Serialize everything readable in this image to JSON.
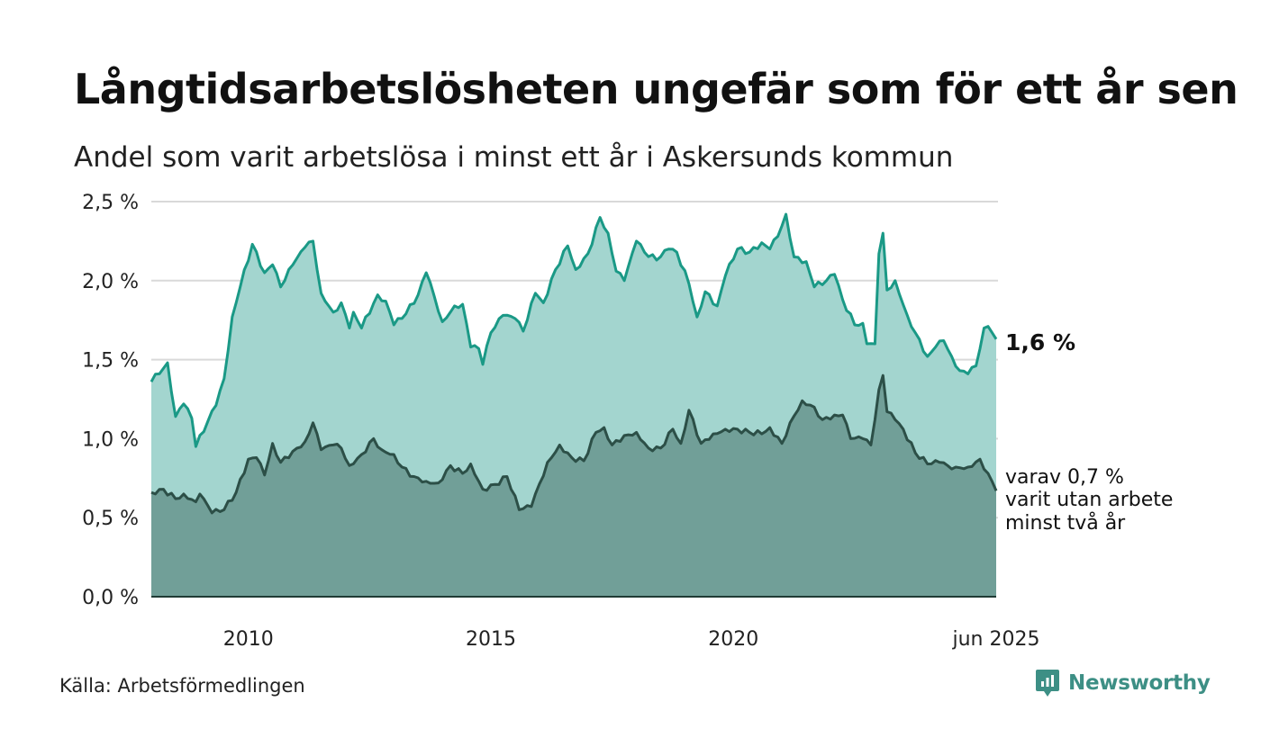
{
  "header": {
    "title": "Långtidsarbetslösheten ungefär som för ett år sen",
    "subtitle": "Andel som varit arbetslösa i minst ett år i Askersunds kommun"
  },
  "footer": {
    "source": "Källa: Arbetsförmedlingen",
    "brand": "Newsworthy"
  },
  "annotations": {
    "total_label": "1,6 %",
    "sub_label_lines": [
      "varav 0,7 %",
      "varit utan arbete",
      "minst två år"
    ]
  },
  "colors": {
    "total_line": "#1a9986",
    "total_fill": "#a3d5cf",
    "sub_line": "#2c4f47",
    "sub_fill": "#719f98",
    "grid": "#d9d9d9",
    "brand": "#3d8f85"
  },
  "icons": {
    "brand_logo": "newsworthy-logo-icon"
  },
  "chart_data": {
    "type": "area",
    "x_start": "2008-01",
    "x_end": "2025-06",
    "x_frequency": "monthly",
    "ylim": [
      0,
      2.5
    ],
    "yticks": [
      0,
      0.5,
      1.0,
      1.5,
      2.0,
      2.5
    ],
    "ytick_labels": [
      "0,0 %",
      "0,5 %",
      "1,0 %",
      "1,5 %",
      "2,0 %",
      "2,5 %"
    ],
    "xticks": [
      "2010-01",
      "2015-01",
      "2020-01",
      "2025-06"
    ],
    "xtick_labels": [
      "2010",
      "2015",
      "2020",
      "jun 2025"
    ],
    "grid": "horizontal",
    "series": [
      {
        "name": "",
        "unit": "%",
        "anchors": [
          [
            "2008-01",
            1.36
          ],
          [
            "2008-05",
            1.48
          ],
          [
            "2008-07",
            1.14
          ],
          [
            "2008-09",
            1.22
          ],
          [
            "2008-11",
            1.13
          ],
          [
            "2008-12",
            0.95
          ],
          [
            "2009-03",
            1.11
          ],
          [
            "2009-05",
            1.21
          ],
          [
            "2009-07",
            1.38
          ],
          [
            "2009-09",
            1.77
          ],
          [
            "2009-11",
            1.96
          ],
          [
            "2010-02",
            2.23
          ],
          [
            "2010-05",
            2.05
          ],
          [
            "2010-07",
            2.1
          ],
          [
            "2010-09",
            1.96
          ],
          [
            "2010-12",
            2.1
          ],
          [
            "2011-03",
            2.21
          ],
          [
            "2011-05",
            2.25
          ],
          [
            "2011-07",
            1.92
          ],
          [
            "2011-10",
            1.8
          ],
          [
            "2011-12",
            1.86
          ],
          [
            "2012-02",
            1.7
          ],
          [
            "2012-03",
            1.8
          ],
          [
            "2012-05",
            1.7
          ],
          [
            "2012-09",
            1.91
          ],
          [
            "2012-11",
            1.87
          ],
          [
            "2013-01",
            1.72
          ],
          [
            "2013-04",
            1.79
          ],
          [
            "2013-07",
            1.91
          ],
          [
            "2013-09",
            2.05
          ],
          [
            "2013-11",
            1.9
          ],
          [
            "2014-01",
            1.74
          ],
          [
            "2014-04",
            1.84
          ],
          [
            "2014-06",
            1.85
          ],
          [
            "2014-08",
            1.58
          ],
          [
            "2014-10",
            1.57
          ],
          [
            "2014-11",
            1.47
          ],
          [
            "2015-01",
            1.67
          ],
          [
            "2015-04",
            1.78
          ],
          [
            "2015-07",
            1.76
          ],
          [
            "2015-09",
            1.68
          ],
          [
            "2015-12",
            1.92
          ],
          [
            "2016-02",
            1.86
          ],
          [
            "2016-05",
            2.07
          ],
          [
            "2016-08",
            2.22
          ],
          [
            "2016-10",
            2.07
          ],
          [
            "2017-01",
            2.17
          ],
          [
            "2017-04",
            2.4
          ],
          [
            "2017-06",
            2.3
          ],
          [
            "2017-08",
            2.06
          ],
          [
            "2017-10",
            2.0
          ],
          [
            "2018-01",
            2.25
          ],
          [
            "2018-03",
            2.18
          ],
          [
            "2018-06",
            2.13
          ],
          [
            "2018-09",
            2.2
          ],
          [
            "2018-11",
            2.18
          ],
          [
            "2019-02",
            1.98
          ],
          [
            "2019-04",
            1.77
          ],
          [
            "2019-06",
            1.93
          ],
          [
            "2019-09",
            1.84
          ],
          [
            "2019-11",
            2.03
          ],
          [
            "2020-02",
            2.2
          ],
          [
            "2020-05",
            2.18
          ],
          [
            "2020-08",
            2.24
          ],
          [
            "2020-10",
            2.2
          ],
          [
            "2020-12",
            2.28
          ],
          [
            "2021-02",
            2.42
          ],
          [
            "2021-04",
            2.15
          ],
          [
            "2021-07",
            2.12
          ],
          [
            "2021-09",
            1.96
          ],
          [
            "2021-12",
            2.0
          ],
          [
            "2022-02",
            2.04
          ],
          [
            "2022-04",
            1.88
          ],
          [
            "2022-07",
            1.72
          ],
          [
            "2022-09",
            1.73
          ],
          [
            "2022-10",
            1.6
          ],
          [
            "2022-12",
            1.6
          ],
          [
            "2023-01",
            2.17
          ],
          [
            "2023-02",
            2.3
          ],
          [
            "2023-03",
            1.94
          ],
          [
            "2023-05",
            2.0
          ],
          [
            "2023-08",
            1.78
          ],
          [
            "2023-10",
            1.67
          ],
          [
            "2024-01",
            1.52
          ],
          [
            "2024-03",
            1.58
          ],
          [
            "2024-05",
            1.62
          ],
          [
            "2024-07",
            1.52
          ],
          [
            "2024-09",
            1.43
          ],
          [
            "2024-11",
            1.41
          ],
          [
            "2025-01",
            1.46
          ],
          [
            "2025-03",
            1.7
          ],
          [
            "2025-04",
            1.71
          ],
          [
            "2025-06",
            1.63
          ]
        ]
      },
      {
        "name": "",
        "unit": "%",
        "anchors": [
          [
            "2008-01",
            0.66
          ],
          [
            "2008-04",
            0.68
          ],
          [
            "2008-07",
            0.62
          ],
          [
            "2008-09",
            0.65
          ],
          [
            "2008-12",
            0.6
          ],
          [
            "2009-01",
            0.65
          ],
          [
            "2009-04",
            0.53
          ],
          [
            "2009-07",
            0.55
          ],
          [
            "2009-10",
            0.66
          ],
          [
            "2010-01",
            0.87
          ],
          [
            "2010-03",
            0.88
          ],
          [
            "2010-05",
            0.77
          ],
          [
            "2010-07",
            0.97
          ],
          [
            "2010-09",
            0.85
          ],
          [
            "2010-12",
            0.92
          ],
          [
            "2011-03",
            0.98
          ],
          [
            "2011-05",
            1.1
          ],
          [
            "2011-07",
            0.93
          ],
          [
            "2011-10",
            0.96
          ],
          [
            "2011-12",
            0.94
          ],
          [
            "2012-02",
            0.83
          ],
          [
            "2012-05",
            0.9
          ],
          [
            "2012-08",
            1.0
          ],
          [
            "2012-10",
            0.93
          ],
          [
            "2013-01",
            0.9
          ],
          [
            "2013-03",
            0.82
          ],
          [
            "2013-06",
            0.76
          ],
          [
            "2013-09",
            0.73
          ],
          [
            "2013-12",
            0.72
          ],
          [
            "2014-03",
            0.83
          ],
          [
            "2014-06",
            0.78
          ],
          [
            "2014-08",
            0.84
          ],
          [
            "2014-11",
            0.68
          ],
          [
            "2015-02",
            0.71
          ],
          [
            "2015-05",
            0.76
          ],
          [
            "2015-08",
            0.55
          ],
          [
            "2015-11",
            0.57
          ],
          [
            "2016-03",
            0.85
          ],
          [
            "2016-06",
            0.96
          ],
          [
            "2016-09",
            0.88
          ],
          [
            "2016-12",
            0.86
          ],
          [
            "2017-03",
            1.04
          ],
          [
            "2017-05",
            1.07
          ],
          [
            "2017-07",
            0.96
          ],
          [
            "2017-10",
            1.02
          ],
          [
            "2018-01",
            1.04
          ],
          [
            "2018-04",
            0.94
          ],
          [
            "2018-07",
            0.94
          ],
          [
            "2018-10",
            1.06
          ],
          [
            "2018-12",
            0.97
          ],
          [
            "2019-02",
            1.18
          ],
          [
            "2019-05",
            0.97
          ],
          [
            "2019-08",
            1.03
          ],
          [
            "2019-11",
            1.06
          ],
          [
            "2020-02",
            1.06
          ],
          [
            "2020-05",
            1.04
          ],
          [
            "2020-08",
            1.03
          ],
          [
            "2020-10",
            1.07
          ],
          [
            "2021-01",
            0.97
          ],
          [
            "2021-03",
            1.1
          ],
          [
            "2021-06",
            1.24
          ],
          [
            "2021-09",
            1.2
          ],
          [
            "2021-11",
            1.12
          ],
          [
            "2022-02",
            1.15
          ],
          [
            "2022-04",
            1.15
          ],
          [
            "2022-06",
            1.0
          ],
          [
            "2022-09",
            1.0
          ],
          [
            "2022-11",
            0.96
          ],
          [
            "2023-01",
            1.31
          ],
          [
            "2023-02",
            1.4
          ],
          [
            "2023-03",
            1.17
          ],
          [
            "2023-05",
            1.12
          ],
          [
            "2023-07",
            1.06
          ],
          [
            "2023-10",
            0.91
          ],
          [
            "2024-01",
            0.84
          ],
          [
            "2024-04",
            0.85
          ],
          [
            "2024-06",
            0.83
          ],
          [
            "2024-08",
            0.82
          ],
          [
            "2024-11",
            0.82
          ],
          [
            "2025-02",
            0.87
          ],
          [
            "2025-04",
            0.78
          ],
          [
            "2025-06",
            0.67
          ]
        ]
      }
    ]
  }
}
